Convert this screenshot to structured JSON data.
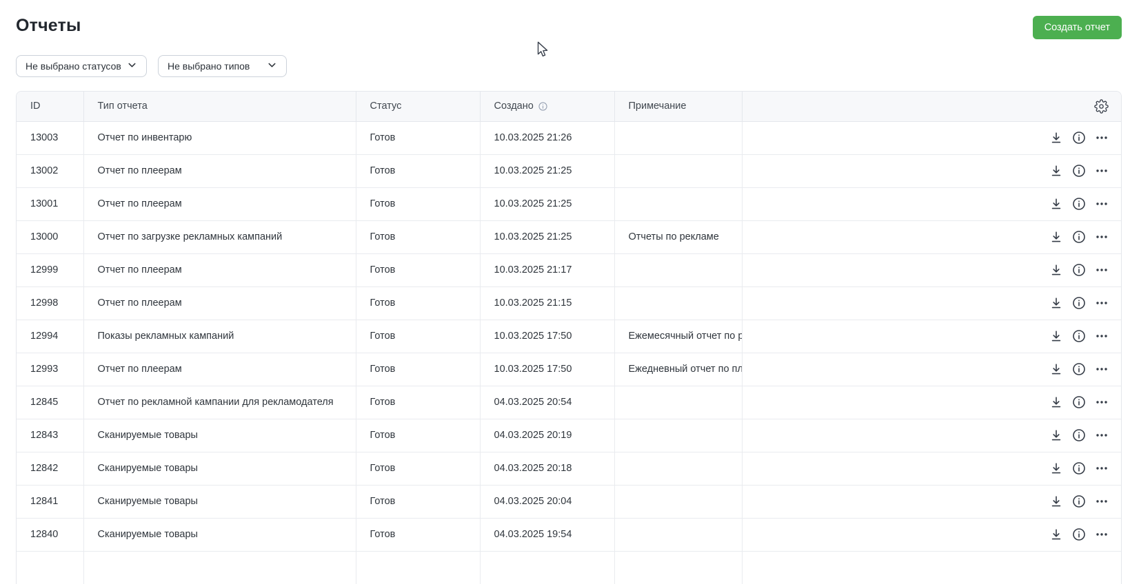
{
  "page": {
    "title": "Отчеты",
    "create_button_label": "Создать отчет"
  },
  "filters": {
    "status_filter_value": "Не выбрано статусов",
    "type_filter_value": "Не выбрано типов"
  },
  "table": {
    "headers": {
      "id": "ID",
      "type": "Тип отчета",
      "status": "Статус",
      "created": "Создано",
      "note": "Примечание"
    },
    "rows": [
      {
        "id": "13003",
        "type": "Отчет по инвентарю",
        "status": "Готов",
        "created": "10.03.2025 21:26",
        "note": ""
      },
      {
        "id": "13002",
        "type": "Отчет по плеерам",
        "status": "Готов",
        "created": "10.03.2025 21:25",
        "note": ""
      },
      {
        "id": "13001",
        "type": "Отчет по плеерам",
        "status": "Готов",
        "created": "10.03.2025 21:25",
        "note": ""
      },
      {
        "id": "13000",
        "type": "Отчет по загрузке рекламных кампаний",
        "status": "Готов",
        "created": "10.03.2025 21:25",
        "note": "Отчеты по рекламе"
      },
      {
        "id": "12999",
        "type": "Отчет по плеерам",
        "status": "Готов",
        "created": "10.03.2025 21:17",
        "note": ""
      },
      {
        "id": "12998",
        "type": "Отчет по плеерам",
        "status": "Готов",
        "created": "10.03.2025 21:15",
        "note": ""
      },
      {
        "id": "12994",
        "type": "Показы рекламных кампаний",
        "status": "Готов",
        "created": "10.03.2025 17:50",
        "note": "Ежемесячный отчет по р..."
      },
      {
        "id": "12993",
        "type": "Отчет по плеерам",
        "status": "Готов",
        "created": "10.03.2025 17:50",
        "note": "Ежедневный отчет по пл..."
      },
      {
        "id": "12845",
        "type": "Отчет по рекламной кампании для рекламодателя",
        "status": "Готов",
        "created": "04.03.2025 20:54",
        "note": ""
      },
      {
        "id": "12843",
        "type": "Сканируемые товары",
        "status": "Готов",
        "created": "04.03.2025 20:19",
        "note": ""
      },
      {
        "id": "12842",
        "type": "Сканируемые товары",
        "status": "Готов",
        "created": "04.03.2025 20:18",
        "note": ""
      },
      {
        "id": "12841",
        "type": "Сканируемые товары",
        "status": "Готов",
        "created": "04.03.2025 20:04",
        "note": ""
      },
      {
        "id": "12840",
        "type": "Сканируемые товары",
        "status": "Готов",
        "created": "04.03.2025 19:54",
        "note": ""
      }
    ]
  },
  "icons": {
    "filter_dropdowns": "chevron-down-icon",
    "created_header_hint": "info-icon",
    "table_header_right": "gear-icon",
    "row_actions": [
      "download-icon",
      "info-icon",
      "ellipsis-icon"
    ],
    "pointer": "cursor-arrow-icon"
  },
  "colors": {
    "accent_green": "#4caf50",
    "table_header_bg": "#f7f8fa",
    "table_border": "#e4e7ec",
    "text_primary": "#2f353c",
    "hint_icon": "#98a2b3"
  }
}
